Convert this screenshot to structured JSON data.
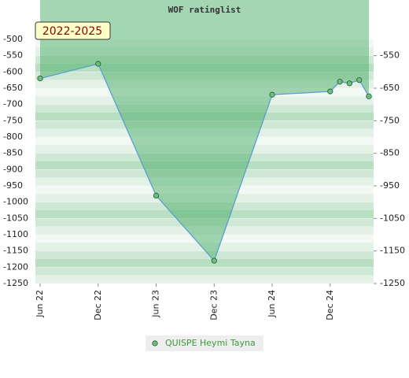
{
  "chart_data": {
    "type": "line",
    "title": "WOF ratinglist",
    "subtitle": "2022-2025",
    "x": [
      "2022-06",
      "2022-12",
      "2023-06",
      "2023-12",
      "2024-06",
      "2024-12",
      "2025-01",
      "2025-02",
      "2025-03",
      "2025-04"
    ],
    "series": [
      {
        "name": "QUISPE Heymi Tayna",
        "color": "#5b9fd0",
        "fill_color": "#4cae6a",
        "marker_color": "#6cbf7c",
        "values": [
          -620,
          -575,
          -980,
          -1180,
          -670,
          -660,
          -630,
          -635,
          -625,
          -675
        ]
      }
    ],
    "xlim": [
      "2022-06",
      "2025-04"
    ],
    "xticks": [
      {
        "value": "2022-06",
        "label": "Jun 22"
      },
      {
        "value": "2022-12",
        "label": "Dec 22"
      },
      {
        "value": "2023-06",
        "label": "Jun 23"
      },
      {
        "value": "2023-12",
        "label": "Dec 23"
      },
      {
        "value": "2024-06",
        "label": "Jun 24"
      },
      {
        "value": "2024-12",
        "label": "Dec 24"
      }
    ],
    "ylim": [
      -1250,
      -500
    ],
    "yticks": [
      -500,
      -550,
      -600,
      -650,
      -700,
      -750,
      -800,
      -850,
      -900,
      -950,
      -1000,
      -1050,
      -1100,
      -1150,
      -1200,
      -1250
    ],
    "y2lim": [
      -1250,
      -500
    ],
    "y2ticks": [
      -550,
      -650,
      -750,
      -850,
      -950,
      -1050,
      -1150,
      -1250
    ],
    "grid": true
  }
}
